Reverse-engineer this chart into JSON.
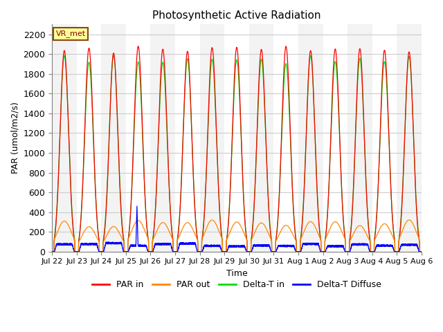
{
  "title": "Photosynthetic Active Radiation",
  "xlabel": "Time",
  "ylabel": "PAR (umol/m2/s)",
  "ylim": [
    0,
    2300
  ],
  "yticks": [
    0,
    200,
    400,
    600,
    800,
    1000,
    1200,
    1400,
    1600,
    1800,
    2000,
    2200
  ],
  "date_labels": [
    "Jul 22",
    "Jul 23",
    "Jul 24",
    "Jul 25",
    "Jul 26",
    "Jul 27",
    "Jul 28",
    "Jul 29",
    "Jul 30",
    "Jul 31",
    "Aug 1",
    "Aug 2",
    "Aug 3",
    "Aug 4",
    "Aug 5",
    "Aug 6"
  ],
  "legend_label": "VR_met",
  "colors": {
    "PAR_in": "#ff0000",
    "PAR_out": "#ff8800",
    "Delta_T_in": "#00dd00",
    "Delta_T_Diffuse": "#0000ff"
  },
  "legend_entries": [
    "PAR in",
    "PAR out",
    "Delta-T in",
    "Delta-T Diffuse"
  ],
  "n_days": 15,
  "peak_PAR": 2050,
  "peak_PAR_out": 280,
  "peak_Delta_T": 1950,
  "background_color": "#ffffff",
  "grid_color": "#cccccc"
}
